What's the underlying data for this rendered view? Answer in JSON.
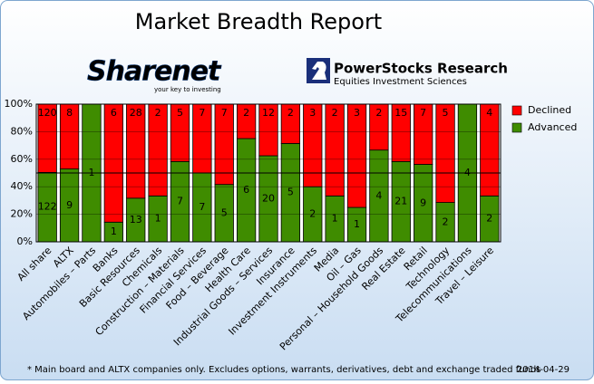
{
  "chart_data": {
    "type": "bar",
    "stacking": "percent",
    "title": "Market Breadth Report",
    "logos": [
      {
        "name": "Sharenet",
        "tagline": "your key to investing"
      },
      {
        "name": "PowerStocks  Research",
        "tagline": "Equities Investment Sciences"
      }
    ],
    "categories": [
      "All share",
      "ALTX",
      "Automobiles – Parts",
      "Banks",
      "Basic Resources",
      "Chemicals",
      "Construction – Materials",
      "Financial Services",
      "Food – Beverage",
      "Health Care",
      "Industrial Goods – Services",
      "Insurance",
      "Investment Instruments",
      "Media",
      "Oil – Gas",
      "Personal – Household Goods",
      "Real Estate",
      "Retail",
      "Technology",
      "Telecommunications",
      "Travel – Leisure"
    ],
    "series": [
      {
        "name": "Advanced",
        "color": "#3f8c00",
        "values": [
          122,
          9,
          1,
          1,
          13,
          1,
          7,
          7,
          5,
          6,
          20,
          5,
          2,
          1,
          1,
          4,
          21,
          9,
          2,
          4,
          2
        ]
      },
      {
        "name": "Declined",
        "color": "#ff0000",
        "values": [
          120,
          8,
          0,
          6,
          28,
          2,
          5,
          7,
          7,
          2,
          12,
          2,
          3,
          2,
          3,
          2,
          15,
          7,
          5,
          0,
          4
        ]
      }
    ],
    "ylim": [
      0,
      100
    ],
    "yticks": [
      {
        "value": 0,
        "label": "0%"
      },
      {
        "value": 20,
        "label": "20%"
      },
      {
        "value": 40,
        "label": "40%"
      },
      {
        "value": 60,
        "label": "60%"
      },
      {
        "value": 80,
        "label": "80%"
      },
      {
        "value": 100,
        "label": "100%"
      }
    ],
    "reference_line": 50,
    "legend": "right",
    "footnote": "* Main board and ALTX companies only. Excludes options, warrants, derivatives, debt and exchange traded funds",
    "date": "2014-04-29"
  }
}
